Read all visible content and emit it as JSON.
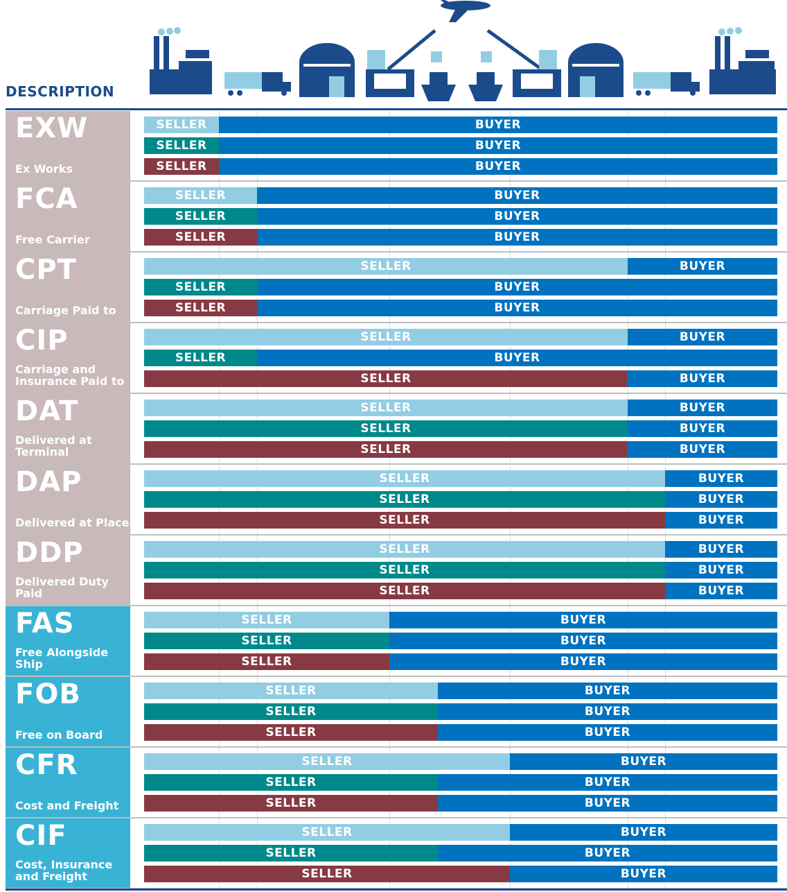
{
  "header": {
    "title": "DESCRIPTION"
  },
  "icons": [
    "factory-icon",
    "truck-icon",
    "warehouse-icon",
    "port-crane-icon",
    "ship-icon",
    "airplane-icon",
    "ship-icon",
    "port-crane-icon",
    "warehouse-icon",
    "truck-icon",
    "factory-icon"
  ],
  "colors": {
    "row1": "#93cde3",
    "row2": "#00898a",
    "row3": "#873a43",
    "buyer": "#0072bf",
    "desc_group1": "#c9b9ba",
    "desc_group2": "#39b3d5",
    "brand": "#1c4b8c"
  },
  "labels": {
    "seller": "SELLER",
    "buyer": "BUYER"
  },
  "terms": [
    {
      "code": "EXW",
      "name": "Ex Works",
      "group": 1,
      "seller_share": [
        0.118,
        0.118,
        0.118
      ]
    },
    {
      "code": "FCA",
      "name": "Free Carrier",
      "group": 1,
      "seller_share": [
        0.178,
        0.178,
        0.178
      ]
    },
    {
      "code": "CPT",
      "name": "Carriage Paid to",
      "group": 1,
      "seller_share": [
        0.764,
        0.178,
        0.178
      ]
    },
    {
      "code": "CIP",
      "name": "Carriage and Insurance Paid to",
      "group": 1,
      "seller_share": [
        0.764,
        0.178,
        0.764
      ]
    },
    {
      "code": "DAT",
      "name": "Delivered at Terminal",
      "group": 1,
      "seller_share": [
        0.764,
        0.764,
        0.764
      ]
    },
    {
      "code": "DAP",
      "name": "Delivered at Place",
      "group": 1,
      "seller_share": [
        0.823,
        0.823,
        0.823
      ]
    },
    {
      "code": "DDP",
      "name": "Delivered Duty Paid",
      "group": 1,
      "seller_share": [
        0.823,
        0.823,
        0.823
      ]
    },
    {
      "code": "FAS",
      "name": "Free Alongside Ship",
      "group": 2,
      "seller_share": [
        0.387,
        0.387,
        0.387
      ]
    },
    {
      "code": "FOB",
      "name": "Free on Board",
      "group": 2,
      "seller_share": [
        0.464,
        0.464,
        0.464
      ]
    },
    {
      "code": "CFR",
      "name": "Cost and Freight",
      "group": 2,
      "seller_share": [
        0.578,
        0.464,
        0.464
      ]
    },
    {
      "code": "CIF",
      "name": "Cost, Insurance and Freight",
      "group": 2,
      "seller_share": [
        0.578,
        0.464,
        0.578
      ]
    }
  ]
}
